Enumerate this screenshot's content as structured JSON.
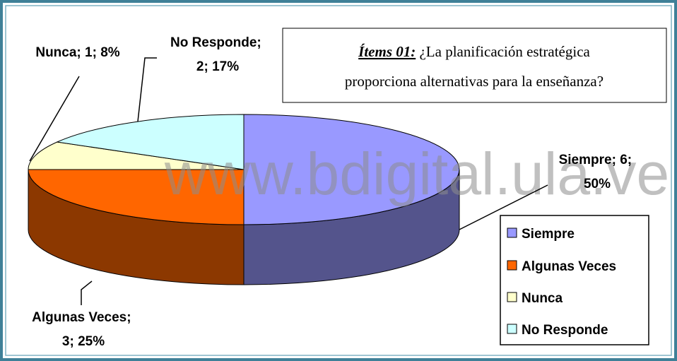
{
  "chart_data": {
    "type": "pie",
    "title": "Ítems 01:",
    "subtitle": [
      "¿La planificación estratégica",
      "proporciona alternativas para la enseñanza?"
    ],
    "watermark": "www.bdigital.ula.ve",
    "categories": [
      "Siempre",
      "Algunas Veces",
      "Nunca",
      "No Responde"
    ],
    "values": [
      6,
      3,
      1,
      2
    ],
    "value_labels": [
      "Siempre; 6; 50%",
      "Algunas Veces; 3; 25%",
      "Nunca; 1; 8%",
      "No Responde; 2; 17%"
    ],
    "colors": [
      "#9999ff",
      "#ff6600",
      "#ffffcc",
      "#ccffff"
    ],
    "legend": "right"
  }
}
